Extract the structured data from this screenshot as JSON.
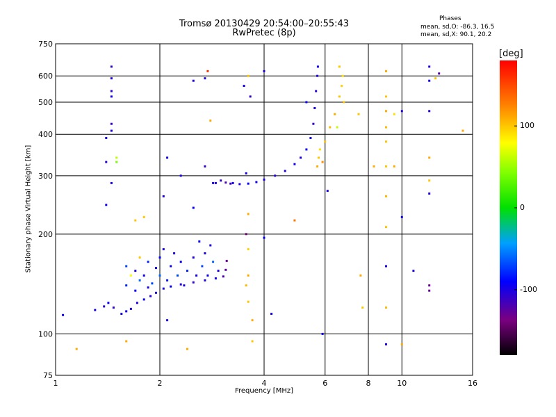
{
  "title": "Tromsø 20130429 20:54:00–20:55:43",
  "subtitle": "RwPretec (8p)",
  "phases": {
    "heading": "Phases",
    "o_line": "mean, sd,O: -86.3, 16.5",
    "x_line": "mean, sd,X:  90.1, 20.2"
  },
  "colorbar": {
    "unit": "[deg]",
    "ticks": [
      {
        "value": 100,
        "label": "100"
      },
      {
        "value": 0,
        "label": "0"
      },
      {
        "value": -100,
        "label": "-100"
      }
    ],
    "range": [
      -180,
      180
    ]
  },
  "chart_data": {
    "type": "scatter",
    "title": "Tromsø 20130429 20:54:00–20:55:43",
    "subtitle": "RwPretec (8p)",
    "xlabel": "Frequency [MHz]",
    "ylabel": "Stationary phase Virtual Height [km]",
    "x_scale": "log",
    "y_scale": "log",
    "xlim": [
      1,
      16
    ],
    "ylim": [
      75,
      750
    ],
    "x_ticks": [
      1,
      2,
      4,
      6,
      8,
      10,
      16
    ],
    "x_tick_labels": [
      "1",
      "2",
      "4",
      "6",
      "8",
      "10",
      "16"
    ],
    "y_ticks": [
      75,
      100,
      200,
      300,
      400,
      500,
      600,
      750
    ],
    "y_tick_labels": [
      "75",
      "100",
      "200",
      "300",
      "400",
      "500",
      "600",
      "750"
    ],
    "grid": true,
    "color_axis": {
      "label": "[deg]",
      "range": [
        -180,
        180
      ]
    },
    "series": [
      {
        "name": "",
        "points": [
          [
            1.05,
            114,
            -95
          ],
          [
            1.3,
            118,
            -100
          ],
          [
            1.38,
            121,
            -105
          ],
          [
            1.42,
            124,
            -90
          ],
          [
            1.47,
            120,
            -110
          ],
          [
            1.55,
            115,
            -100
          ],
          [
            1.6,
            117,
            -95
          ],
          [
            1.65,
            119,
            -105
          ],
          [
            1.72,
            124,
            -100
          ],
          [
            1.8,
            127,
            -95
          ],
          [
            1.88,
            130,
            -100
          ],
          [
            1.95,
            133,
            -105
          ],
          [
            2.05,
            137,
            -100
          ],
          [
            2.15,
            139,
            -95
          ],
          [
            2.3,
            141,
            -100
          ],
          [
            2.5,
            143,
            -110
          ],
          [
            2.7,
            145,
            -100
          ],
          [
            2.9,
            147,
            -95
          ],
          [
            3.05,
            149,
            -120
          ],
          [
            3.1,
            156,
            -125
          ],
          [
            3.12,
            166,
            -130
          ],
          [
            1.6,
            140,
            -80
          ],
          [
            1.6,
            160,
            -70
          ],
          [
            1.7,
            135,
            -90
          ],
          [
            1.7,
            155,
            -100
          ],
          [
            1.75,
            145,
            -60
          ],
          [
            1.8,
            150,
            -95
          ],
          [
            1.85,
            165,
            -80
          ],
          [
            1.85,
            138,
            -100
          ],
          [
            1.9,
            142,
            -70
          ],
          [
            1.95,
            158,
            -100
          ],
          [
            2.0,
            170,
            -90
          ],
          [
            2.0,
            150,
            -60
          ],
          [
            2.05,
            180,
            -100
          ],
          [
            2.1,
            145,
            -85
          ],
          [
            2.15,
            160,
            -95
          ],
          [
            2.2,
            175,
            -100
          ],
          [
            2.25,
            150,
            -70
          ],
          [
            2.3,
            165,
            -90
          ],
          [
            2.35,
            140,
            -100
          ],
          [
            2.4,
            155,
            -80
          ],
          [
            2.5,
            170,
            -100
          ],
          [
            2.55,
            150,
            -95
          ],
          [
            2.6,
            190,
            -90
          ],
          [
            2.65,
            160,
            -70
          ],
          [
            2.7,
            175,
            -100
          ],
          [
            2.75,
            150,
            -95
          ],
          [
            2.8,
            185,
            -100
          ],
          [
            2.85,
            165,
            -60
          ],
          [
            2.95,
            155,
            -100
          ],
          [
            1.65,
            150,
            80
          ],
          [
            1.8,
            225,
            100
          ],
          [
            2.05,
            260,
            -100
          ],
          [
            2.1,
            340,
            -95
          ],
          [
            2.3,
            300,
            -100
          ],
          [
            2.5,
            240,
            -90
          ],
          [
            2.7,
            320,
            -110
          ],
          [
            2.9,
            285,
            -100
          ],
          [
            3.0,
            290,
            -110
          ],
          [
            3.1,
            286,
            -120
          ],
          [
            3.2,
            284,
            -115
          ],
          [
            3.4,
            283,
            -100
          ],
          [
            3.6,
            284,
            -90
          ],
          [
            3.8,
            287,
            -95
          ],
          [
            4.0,
            292,
            -100
          ],
          [
            4.3,
            300,
            -105
          ],
          [
            4.6,
            310,
            -100
          ],
          [
            4.9,
            325,
            -95
          ],
          [
            5.1,
            340,
            -100
          ],
          [
            5.3,
            360,
            -95
          ],
          [
            5.45,
            390,
            -100
          ],
          [
            5.55,
            430,
            -110
          ],
          [
            5.6,
            480,
            -100
          ],
          [
            5.65,
            540,
            -105
          ],
          [
            5.7,
            600,
            -100
          ],
          [
            5.72,
            640,
            -95
          ],
          [
            5.7,
            320,
            110
          ],
          [
            5.75,
            340,
            100
          ],
          [
            5.8,
            360,
            90
          ],
          [
            5.9,
            330,
            120
          ],
          [
            6.0,
            380,
            100
          ],
          [
            6.2,
            420,
            105
          ],
          [
            6.4,
            460,
            110
          ],
          [
            6.6,
            520,
            100
          ],
          [
            6.7,
            560,
            95
          ],
          [
            6.75,
            600,
            90
          ],
          [
            6.5,
            420,
            60
          ],
          [
            6.8,
            500,
            100
          ],
          [
            6.6,
            640,
            100
          ],
          [
            1.45,
            640,
            -110
          ],
          [
            1.45,
            590,
            -100
          ],
          [
            1.45,
            540,
            -105
          ],
          [
            1.45,
            520,
            -95
          ],
          [
            1.45,
            430,
            -110
          ],
          [
            1.45,
            410,
            -100
          ],
          [
            1.4,
            390,
            -100
          ],
          [
            1.4,
            330,
            -105
          ],
          [
            1.45,
            285,
            -100
          ],
          [
            1.4,
            245,
            -95
          ],
          [
            1.5,
            330,
            40
          ],
          [
            1.5,
            340,
            60
          ],
          [
            1.15,
            90,
            110
          ],
          [
            9.0,
            620,
            110
          ],
          [
            9.0,
            520,
            100
          ],
          [
            9.0,
            470,
            110
          ],
          [
            9.0,
            420,
            105
          ],
          [
            9.0,
            380,
            100
          ],
          [
            9.0,
            320,
            100
          ],
          [
            9.0,
            260,
            105
          ],
          [
            9.0,
            210,
            100
          ],
          [
            9.0,
            160,
            -100
          ],
          [
            9.0,
            120,
            105
          ],
          [
            9.0,
            93,
            -100
          ],
          [
            9.5,
            460,
            90
          ],
          [
            9.5,
            320,
            110
          ],
          [
            10.0,
            470,
            -100
          ],
          [
            10.0,
            225,
            -95
          ],
          [
            10.0,
            93,
            110
          ],
          [
            10.8,
            155,
            -100
          ],
          [
            12.0,
            640,
            -100
          ],
          [
            12.0,
            580,
            -95
          ],
          [
            12.0,
            470,
            -105
          ],
          [
            12.0,
            340,
            110
          ],
          [
            12.0,
            290,
            100
          ],
          [
            12.0,
            265,
            -100
          ],
          [
            12.0,
            140,
            -130
          ],
          [
            12.0,
            135,
            -130
          ],
          [
            12.8,
            610,
            -120
          ],
          [
            12.5,
            590,
            100
          ],
          [
            15.0,
            410,
            110
          ],
          [
            3.6,
            600,
            100
          ],
          [
            3.5,
            560,
            -95
          ],
          [
            3.65,
            520,
            -110
          ],
          [
            3.55,
            305,
            -100
          ],
          [
            3.6,
            230,
            110
          ],
          [
            3.55,
            200,
            -140
          ],
          [
            3.6,
            180,
            95
          ],
          [
            3.6,
            150,
            110
          ],
          [
            3.55,
            140,
            105
          ],
          [
            3.6,
            125,
            100
          ],
          [
            3.7,
            110,
            110
          ],
          [
            3.7,
            95,
            100
          ],
          [
            4.0,
            195,
            -90
          ],
          [
            4.2,
            115,
            -100
          ],
          [
            4.9,
            220,
            130
          ],
          [
            5.9,
            100,
            -95
          ],
          [
            6.1,
            270,
            -100
          ],
          [
            5.3,
            500,
            -90
          ],
          [
            4.0,
            620,
            -100
          ],
          [
            2.75,
            620,
            160
          ],
          [
            2.7,
            590,
            -100
          ],
          [
            2.5,
            580,
            -100
          ],
          [
            2.8,
            440,
            110
          ],
          [
            1.7,
            220,
            100
          ],
          [
            1.75,
            170,
            100
          ],
          [
            2.4,
            90,
            110
          ],
          [
            1.6,
            95,
            110
          ],
          [
            7.5,
            460,
            100
          ],
          [
            7.6,
            150,
            110
          ],
          [
            7.7,
            120,
            100
          ],
          [
            8.3,
            320,
            110
          ],
          [
            2.1,
            110,
            -100
          ],
          [
            2.85,
            285,
            -100
          ],
          [
            3.25,
            285,
            -95
          ]
        ]
      }
    ]
  }
}
